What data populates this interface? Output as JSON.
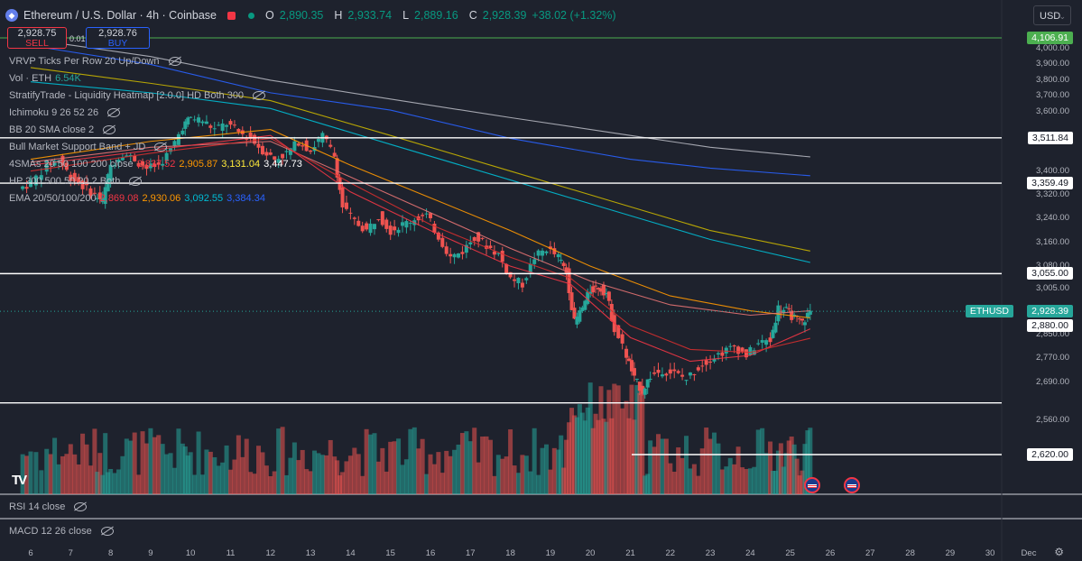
{
  "header": {
    "title": "Ethereum / U.S. Dollar · 4h · Coinbase",
    "open_label": "O",
    "open": "2,890.35",
    "high_label": "H",
    "high": "2,933.74",
    "low_label": "L",
    "low": "2,889.16",
    "close_label": "C",
    "close": "2,928.39",
    "change": "+38.02 (+1.32%)"
  },
  "trade": {
    "sell_price": "2,928.75",
    "sell_label": "SELL",
    "spread": "0.01",
    "buy_price": "2,928.76",
    "buy_label": "BUY"
  },
  "currency": "USD",
  "indicators": [
    {
      "label": "VRVP Ticks Per Row 20 Up/Down"
    },
    {
      "label": "Vol · ETH",
      "value": "6.54K",
      "color": "#26a69a"
    },
    {
      "label": "StratifyTrade - Liquidity Heatmap [2.0.0] HD Both 300"
    },
    {
      "label": "Ichimoku 9 26 52 26"
    },
    {
      "label": "BB 20 SMA close 2"
    },
    {
      "label": "Bull Market Support Band + JD"
    },
    {
      "label": "4SMAs 20 50 100 200 close",
      "values": [
        "2,837.52",
        "2,905.87",
        "3,131.04",
        "3,447.73"
      ],
      "colors": [
        "#f23645",
        "#ff9800",
        "#ffeb3b",
        "#ffffff"
      ]
    },
    {
      "label": "HP 200 500 50 20 2 Both"
    },
    {
      "label": "EMA 20/50/100/200",
      "values": [
        "2,869.08",
        "2,930.06",
        "3,092.55",
        "3,384.34"
      ],
      "colors": [
        "#f23645",
        "#ff9800",
        "#00bcd4",
        "#2962ff"
      ]
    }
  ],
  "panes": {
    "rsi": "RSI 14 close",
    "macd": "MACD 12 26 close"
  },
  "price_labels": [
    {
      "text": "4,106.91",
      "bg": "#4caf50",
      "fg": "#ffffff"
    },
    {
      "text": "3,511.84",
      "bg": "#ffffff",
      "fg": "#131722"
    },
    {
      "text": "3,359.49",
      "bg": "#ffffff",
      "fg": "#131722"
    },
    {
      "text": "3,055.00",
      "bg": "#ffffff",
      "fg": "#131722"
    },
    {
      "text": "2,928.39",
      "bg": "#26a69a",
      "fg": "#ffffff",
      "tag": "ETHUSD"
    },
    {
      "text": "2,880.00",
      "bg": "#ffffff",
      "fg": "#131722"
    },
    {
      "text": "2,620.00",
      "bg": "#ffffff",
      "fg": "#131722"
    }
  ],
  "chart_data": {
    "type": "candlestick",
    "symbol": "ETHUSD",
    "interval": "4h",
    "ylim": [
      2520,
      4160
    ],
    "y_ticks": [
      "4,000.00",
      "3,900.00",
      "3,800.00",
      "3,700.00",
      "3,600.00",
      "3,400.00",
      "3,320.00",
      "3,240.00",
      "3,160.00",
      "3,080.00",
      "3,005.00",
      "2,850.00",
      "2,770.00",
      "2,690.00",
      "2,560.00"
    ],
    "x_ticks": [
      "6",
      "7",
      "8",
      "9",
      "10",
      "11",
      "12",
      "13",
      "14",
      "15",
      "16",
      "17",
      "18",
      "19",
      "20",
      "21",
      "22",
      "23",
      "24",
      "25",
      "26",
      "27",
      "28",
      "29",
      "30",
      "Dec"
    ],
    "horizontal_levels": [
      4106.91,
      3511.84,
      3359.49,
      3055.0,
      2880.0,
      2620.0
    ],
    "close_path": [
      [
        6.0,
        3360
      ],
      [
        6.4,
        3420
      ],
      [
        6.7,
        3440
      ],
      [
        7.0,
        3380
      ],
      [
        7.3,
        3350
      ],
      [
        7.6,
        3320
      ],
      [
        7.8,
        3300
      ],
      [
        8.0,
        3420
      ],
      [
        8.3,
        3460
      ],
      [
        8.6,
        3440
      ],
      [
        8.9,
        3410
      ],
      [
        9.2,
        3420
      ],
      [
        9.5,
        3470
      ],
      [
        9.8,
        3550
      ],
      [
        10.0,
        3580
      ],
      [
        10.3,
        3570
      ],
      [
        10.6,
        3540
      ],
      [
        10.9,
        3560
      ],
      [
        11.2,
        3530
      ],
      [
        11.5,
        3510
      ],
      [
        11.8,
        3470
      ],
      [
        12.1,
        3440
      ],
      [
        12.4,
        3460
      ],
      [
        12.7,
        3500
      ],
      [
        13.0,
        3470
      ],
      [
        13.3,
        3520
      ],
      [
        13.6,
        3450
      ],
      [
        13.8,
        3280
      ],
      [
        14.1,
        3230
      ],
      [
        14.4,
        3200
      ],
      [
        14.7,
        3250
      ],
      [
        15.0,
        3200
      ],
      [
        15.3,
        3220
      ],
      [
        15.6,
        3240
      ],
      [
        15.9,
        3250
      ],
      [
        16.2,
        3180
      ],
      [
        16.5,
        3110
      ],
      [
        16.8,
        3130
      ],
      [
        17.1,
        3180
      ],
      [
        17.4,
        3150
      ],
      [
        17.7,
        3120
      ],
      [
        18.0,
        3040
      ],
      [
        18.3,
        3020
      ],
      [
        18.6,
        3110
      ],
      [
        18.9,
        3140
      ],
      [
        19.2,
        3110
      ],
      [
        19.4,
        3060
      ],
      [
        19.6,
        2890
      ],
      [
        19.8,
        2940
      ],
      [
        20.0,
        3000
      ],
      [
        20.2,
        3010
      ],
      [
        20.4,
        2990
      ],
      [
        20.6,
        2870
      ],
      [
        20.9,
        2780
      ],
      [
        21.1,
        2700
      ],
      [
        21.3,
        2660
      ],
      [
        21.5,
        2710
      ],
      [
        21.8,
        2730
      ],
      [
        22.1,
        2720
      ],
      [
        22.4,
        2700
      ],
      [
        22.7,
        2740
      ],
      [
        23.0,
        2770
      ],
      [
        23.3,
        2790
      ],
      [
        23.6,
        2810
      ],
      [
        23.9,
        2780
      ],
      [
        24.2,
        2820
      ],
      [
        24.5,
        2830
      ],
      [
        24.7,
        2940
      ],
      [
        24.9,
        2930
      ],
      [
        25.1,
        2905
      ],
      [
        25.3,
        2890
      ],
      [
        25.5,
        2928.39
      ]
    ],
    "lines": [
      {
        "name": "SMA 200",
        "color": "#b2b5be",
        "points": [
          [
            6,
            4060
          ],
          [
            9,
            3950
          ],
          [
            12,
            3800
          ],
          [
            15,
            3680
          ],
          [
            18,
            3580
          ],
          [
            21,
            3520
          ],
          [
            23,
            3480
          ],
          [
            25.5,
            3447.73
          ]
        ]
      },
      {
        "name": "EMA 200",
        "color": "#2962ff",
        "points": [
          [
            6,
            4020
          ],
          [
            9,
            3900
          ],
          [
            12,
            3720
          ],
          [
            15,
            3610
          ],
          [
            18,
            3510
          ],
          [
            21,
            3440
          ],
          [
            23,
            3410
          ],
          [
            25.5,
            3384.34
          ]
        ]
      },
      {
        "name": "SMA 100",
        "color": "#c8b400",
        "points": [
          [
            6,
            3880
          ],
          [
            9,
            3780
          ],
          [
            12,
            3670
          ],
          [
            15,
            3520
          ],
          [
            18,
            3400
          ],
          [
            21,
            3280
          ],
          [
            23,
            3200
          ],
          [
            25.5,
            3131.04
          ]
        ]
      },
      {
        "name": "EMA 100",
        "color": "#00bcd4",
        "points": [
          [
            6,
            3790
          ],
          [
            9,
            3720
          ],
          [
            12,
            3620
          ],
          [
            15,
            3490
          ],
          [
            18,
            3370
          ],
          [
            21,
            3250
          ],
          [
            23,
            3170
          ],
          [
            25.5,
            3092.55
          ]
        ]
      },
      {
        "name": "SMA 50",
        "color": "#ff9800",
        "points": [
          [
            6,
            3440
          ],
          [
            9,
            3500
          ],
          [
            12,
            3540
          ],
          [
            14,
            3420
          ],
          [
            16,
            3310
          ],
          [
            18,
            3200
          ],
          [
            20,
            3080
          ],
          [
            22,
            2980
          ],
          [
            24,
            2930
          ],
          [
            25.5,
            2905.87
          ]
        ]
      },
      {
        "name": "EMA 50",
        "color": "#e57373",
        "points": [
          [
            6,
            3430
          ],
          [
            9,
            3480
          ],
          [
            12,
            3500
          ],
          [
            14,
            3380
          ],
          [
            16,
            3260
          ],
          [
            18,
            3140
          ],
          [
            20,
            3030
          ],
          [
            22,
            2950
          ],
          [
            24,
            2915
          ],
          [
            25.5,
            2930.06
          ]
        ]
      },
      {
        "name": "EMA 20",
        "color": "#f23645",
        "points": [
          [
            6,
            3420
          ],
          [
            9,
            3470
          ],
          [
            12,
            3520
          ],
          [
            14,
            3330
          ],
          [
            16,
            3200
          ],
          [
            18,
            3080
          ],
          [
            19.5,
            3020
          ],
          [
            21,
            2840
          ],
          [
            22.5,
            2760
          ],
          [
            24,
            2780
          ],
          [
            25.5,
            2869.08
          ]
        ]
      },
      {
        "name": "SMA 20",
        "color": "#d32f2f",
        "points": [
          [
            6,
            3400
          ],
          [
            9,
            3460
          ],
          [
            12,
            3510
          ],
          [
            14,
            3360
          ],
          [
            16,
            3220
          ],
          [
            18,
            3110
          ],
          [
            19.5,
            3040
          ],
          [
            21,
            2880
          ],
          [
            22.5,
            2800
          ],
          [
            24,
            2790
          ],
          [
            25.5,
            2837.52
          ]
        ]
      }
    ]
  }
}
